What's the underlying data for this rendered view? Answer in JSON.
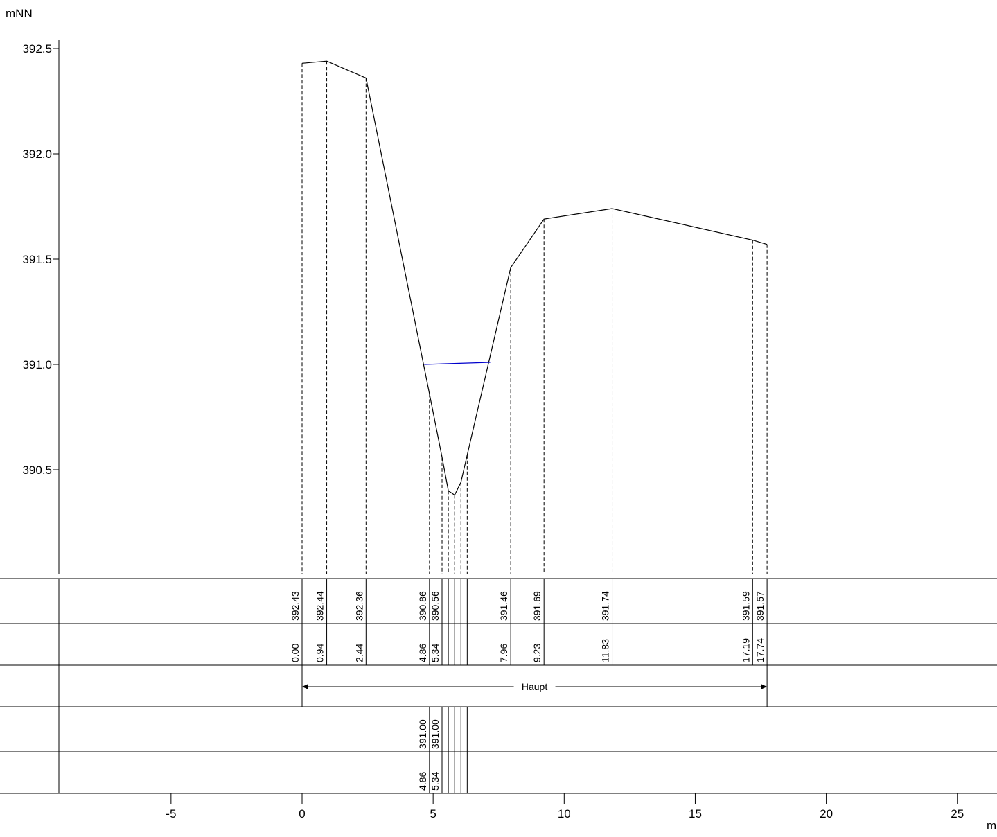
{
  "chart_data": {
    "type": "line",
    "y_unit": "mNN",
    "x_unit": "m",
    "ylim": [
      390.0,
      392.58
    ],
    "xlim": [
      -9.0,
      26.9
    ],
    "y_ticks": [
      390.5,
      391.0,
      391.5,
      392.0,
      392.5
    ],
    "x_ticks": [
      -5,
      0,
      5,
      10,
      15,
      20,
      25
    ],
    "y_tick_labels": [
      "390.5",
      "391.0",
      "391.5",
      "392.0",
      "392.5"
    ],
    "x_tick_labels": [
      "-5",
      "0",
      "5",
      "10",
      "15",
      "20",
      "25"
    ],
    "grid": false,
    "colors": {
      "profile": "#000000",
      "water": "#0000cc"
    },
    "series": [
      {
        "x": [
          0.0,
          0.94,
          2.44,
          4.86,
          5.34,
          5.58,
          5.82,
          6.06,
          6.3,
          7.96,
          9.23,
          11.83,
          17.19,
          17.74
        ],
        "y": [
          392.43,
          392.44,
          392.36,
          390.86,
          390.56,
          390.4,
          390.38,
          390.44,
          390.57,
          391.46,
          391.69,
          391.74,
          391.59,
          391.57
        ]
      },
      {
        "x": [
          4.66,
          7.18
        ],
        "y": [
          391.0,
          391.01
        ]
      }
    ],
    "bands": {
      "elevation": {
        "ticks": [
          0.0,
          0.94,
          2.44,
          4.86,
          5.34,
          5.58,
          5.82,
          6.06,
          6.3,
          7.96,
          9.23,
          11.83,
          17.19,
          17.74
        ],
        "labels": [
          {
            "x": 0.0,
            "text": "392.43"
          },
          {
            "x": 0.94,
            "text": "392.44"
          },
          {
            "x": 2.44,
            "text": "392.36"
          },
          {
            "x": 4.86,
            "text": "390.86"
          },
          {
            "x": 5.34,
            "text": "390.56"
          },
          {
            "x": 7.96,
            "text": "391.46"
          },
          {
            "x": 9.23,
            "text": "391.69"
          },
          {
            "x": 11.83,
            "text": "391.74"
          },
          {
            "x": 17.19,
            "text": "391.59"
          },
          {
            "x": 17.74,
            "text": "391.57"
          }
        ]
      },
      "station": {
        "ticks": [
          0.0,
          0.94,
          2.44,
          4.86,
          5.34,
          5.58,
          5.82,
          6.06,
          6.3,
          7.96,
          9.23,
          11.83,
          17.19,
          17.74
        ],
        "labels": [
          {
            "x": 0.0,
            "text": "0.00"
          },
          {
            "x": 0.94,
            "text": "0.94"
          },
          {
            "x": 2.44,
            "text": "2.44"
          },
          {
            "x": 4.86,
            "text": "4.86"
          },
          {
            "x": 5.34,
            "text": "5.34"
          },
          {
            "x": 7.96,
            "text": "7.96"
          },
          {
            "x": 9.23,
            "text": "9.23"
          },
          {
            "x": 11.83,
            "text": "11.83"
          },
          {
            "x": 17.19,
            "text": "17.19"
          },
          {
            "x": 17.74,
            "text": "17.74"
          }
        ]
      },
      "section": {
        "from": 0.0,
        "to": 17.74,
        "label": "Haupt"
      },
      "water_elevation": {
        "ticks": [
          4.86,
          5.34,
          5.58,
          5.82,
          6.06,
          6.3
        ],
        "labels": [
          {
            "x": 4.86,
            "text": "391.00"
          },
          {
            "x": 5.34,
            "text": "391.00"
          }
        ]
      },
      "water_station": {
        "ticks": [
          4.86,
          5.34,
          5.58,
          5.82,
          6.06,
          6.3
        ],
        "labels": [
          {
            "x": 4.86,
            "text": "4.86"
          },
          {
            "x": 5.34,
            "text": "5.34"
          }
        ]
      }
    }
  }
}
